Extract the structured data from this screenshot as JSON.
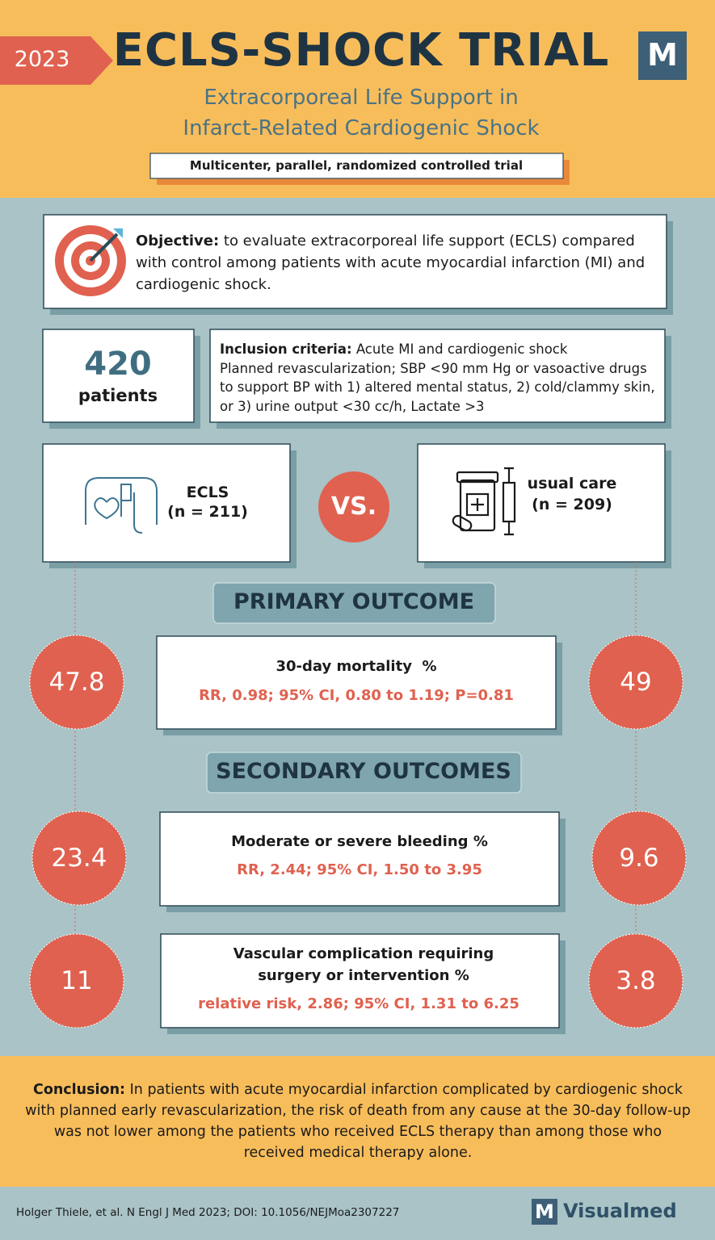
{
  "header": {
    "year": "2023",
    "title": "ECLS-SHOCK TRIAL",
    "logo": "M",
    "subtitle": [
      "Extracorporeal Life Support in",
      "Infarct-Related Cardiogenic Shock"
    ],
    "design": "Multicenter, parallel, randomized controlled trial"
  },
  "objective": {
    "label": "Objective:",
    "text": "to evaluate extracorporeal life support (ECLS) compared with control among patients with acute myocardial infarction (MI) and cardiogenic shock."
  },
  "patients": {
    "count": 420,
    "label": "patients"
  },
  "inclusion": {
    "label": "Inclusion criteria:",
    "lines": [
      "Acute MI and cardiogenic shock",
      "Planned revascularization; SBP <90 mm Hg or vasoactive drugs to support BP with 1) altered mental status, 2) cold/clammy skin, or 3) urine output <30 cc/h, Lactate >3"
    ]
  },
  "arms": {
    "ecls": {
      "name": "ECLS",
      "n": "(n = 211)"
    },
    "vs": "VS.",
    "control": {
      "name": "usual care",
      "n": "(n = 209)"
    }
  },
  "primary": {
    "heading": "PRIMARY OUTCOME",
    "outcome": {
      "title": "30-day mortality  %",
      "stats": "RR, 0.98; 95% CI, 0.80 to 1.19; P=0.81",
      "ecls": 47.8,
      "control": 49
    }
  },
  "secondary": {
    "heading": "SECONDARY OUTCOMES",
    "outcomes": [
      {
        "title": [
          "Moderate or severe bleeding %"
        ],
        "stats": "RR, 2.44; 95% CI, 1.50 to 3.95",
        "ecls": 23.4,
        "control": 9.6
      },
      {
        "title": [
          "Vascular complication requiring",
          "surgery or intervention %"
        ],
        "stats": "relative risk, 2.86; 95% CI, 1.31 to 6.25",
        "ecls": 11,
        "control": 3.8
      }
    ]
  },
  "conclusion": {
    "label": "Conclusion:",
    "text": "In patients with acute myocardial infarction complicated by cardiogenic shock with planned early revascularization, the risk of death from any cause at the 30-day follow-up was not lower among the patients who received ECLS therapy than among those who received medical therapy alone."
  },
  "footer": {
    "citation": "Holger Thiele,  et al.  N Engl J Med 2023; DOI: 10.1056/NEJMoa2307227",
    "brand_icon": "M",
    "brand": "Visualmed"
  }
}
